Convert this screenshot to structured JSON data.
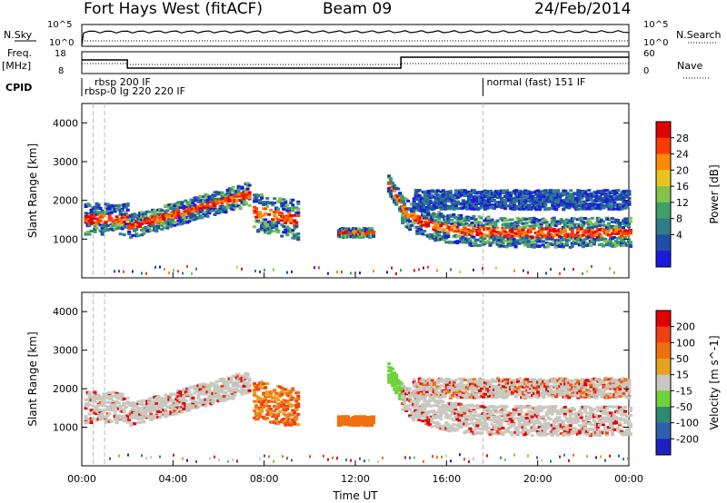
{
  "header": {
    "title": "Fort Hays West (fitACF)",
    "beam": "Beam 09",
    "date": "24/Feb/2014"
  },
  "top_panels": {
    "nsky_label": "N.Sky",
    "nsearch_label": "N.Search",
    "freq_label": "Freq.",
    "freq_unit": "[MHz]",
    "nave_label": "Nave",
    "cpid_label": "CPID",
    "nsky_ticks": [
      "10^5",
      "10^0"
    ],
    "nsearch_ticks": [
      "10^5",
      "10^0"
    ],
    "freq_ticks": [
      "18",
      "8"
    ],
    "nave_ticks": [
      "60",
      "0"
    ],
    "cpid_labels": [
      "rbsp 200 IF",
      "rbsp-0 Ig 220 220 IF",
      "normal (fast) 151 IF"
    ]
  },
  "chart_data": [
    {
      "type": "heatmap",
      "name": "power",
      "ylabel": "Slant Range [km]",
      "xlabel": "Time UT",
      "ylim": [
        0,
        4500
      ],
      "yticks": [
        1000,
        2000,
        3000,
        4000
      ],
      "xticks": [
        "00:00",
        "04:00",
        "08:00",
        "12:00",
        "16:00",
        "20:00",
        "00:00"
      ],
      "xlim_hours": [
        0,
        24
      ],
      "colorbar_label": "Power [dB]",
      "colorbar_ticks": [
        "28",
        "24",
        "20",
        "16",
        "12",
        "8",
        "4"
      ],
      "colors": [
        "#1a1ae0",
        "#1f4fa8",
        "#2f7d86",
        "#3fa06a",
        "#84c24a",
        "#e7c51e",
        "#ff8a00",
        "#ff3a00",
        "#e00000"
      ]
    },
    {
      "type": "heatmap",
      "name": "velocity",
      "ylabel": "Slant Range [km]",
      "xlabel": "Time UT",
      "ylim": [
        0,
        4500
      ],
      "yticks": [
        1000,
        2000,
        3000,
        4000
      ],
      "xticks": [
        "00:00",
        "04:00",
        "08:00",
        "12:00",
        "16:00",
        "20:00",
        "00:00"
      ],
      "xlim_hours": [
        0,
        24
      ],
      "colorbar_label": "Velocity [m s^-1]",
      "colorbar_ticks": [
        "200",
        "100",
        "50",
        "15",
        "-15",
        "-50",
        "-100",
        "-200"
      ],
      "colors": [
        "#2020c0",
        "#2f5fb0",
        "#2f8a70",
        "#6fd23a",
        "#c8c8c0",
        "#e8a020",
        "#f07010",
        "#f04010",
        "#e00000"
      ]
    }
  ]
}
